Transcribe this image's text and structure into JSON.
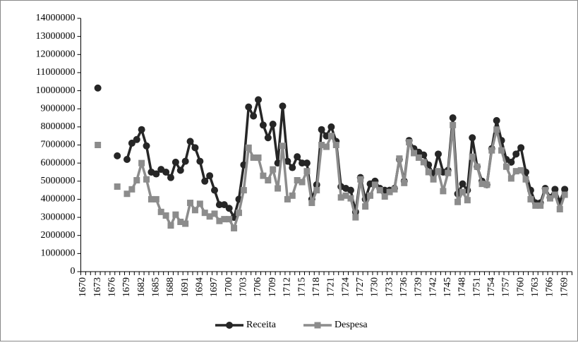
{
  "chart_data": {
    "type": "line",
    "categories": [
      "1670",
      null,
      null,
      "1673",
      null,
      null,
      "1676",
      null,
      null,
      "1679",
      null,
      null,
      "1682",
      null,
      null,
      "1685",
      null,
      null,
      "1688",
      null,
      null,
      "1691",
      null,
      null,
      "1694",
      null,
      null,
      "1697",
      null,
      null,
      "1700",
      null,
      null,
      "1703",
      null,
      null,
      "1706",
      null,
      null,
      "1709",
      null,
      null,
      "1712",
      null,
      null,
      "1715",
      null,
      null,
      "1718",
      null,
      null,
      "1721",
      null,
      null,
      "1724",
      null,
      null,
      "1727",
      null,
      null,
      "1730",
      null,
      null,
      "1733",
      null,
      null,
      "1736",
      null,
      null,
      "1739",
      null,
      null,
      "1742",
      null,
      null,
      "1745",
      null,
      null,
      "1748",
      null,
      null,
      "1751",
      null,
      null,
      "1754",
      null,
      null,
      "1757",
      null,
      null,
      "1760",
      null,
      null,
      "1763",
      null,
      null,
      "1766",
      null,
      null,
      "1769",
      null
    ],
    "series": [
      {
        "name": "Receita",
        "color": "#262626",
        "marker": "circle",
        "values": [
          null,
          null,
          null,
          10150000,
          null,
          null,
          null,
          6400000,
          null,
          6200000,
          7100000,
          7300000,
          7850000,
          6950000,
          5500000,
          5400000,
          5650000,
          5500000,
          5200000,
          6050000,
          5600000,
          6100000,
          7200000,
          6850000,
          6100000,
          5000000,
          5300000,
          4500000,
          3700000,
          3700000,
          3500000,
          3000000,
          4000000,
          5900000,
          9100000,
          8600000,
          9500000,
          8100000,
          7400000,
          8150000,
          6000000,
          9150000,
          6100000,
          5750000,
          6350000,
          6000000,
          6000000,
          4000000,
          4800000,
          7850000,
          7500000,
          8000000,
          7200000,
          4700000,
          4600000,
          4500000,
          3300000,
          5200000,
          4000000,
          4850000,
          5000000,
          4600000,
          4500000,
          4500000,
          4600000,
          6200000,
          5000000,
          7250000,
          6800000,
          6600000,
          6450000,
          5900000,
          5400000,
          6500000,
          5500000,
          5600000,
          8500000,
          4300000,
          4850000,
          4500000,
          7400000,
          5800000,
          5000000,
          4800000,
          6800000,
          8350000,
          7250000,
          6200000,
          6050000,
          6500000,
          6850000,
          5500000,
          4500000,
          3800000,
          3800000,
          4600000,
          4100000,
          4550000,
          3850000,
          4550000,
          null
        ]
      },
      {
        "name": "Despesa",
        "color": "#8c8c8c",
        "marker": "square",
        "values": [
          null,
          null,
          null,
          7000000,
          null,
          null,
          null,
          4700000,
          null,
          4300000,
          4550000,
          5050000,
          6000000,
          5100000,
          4000000,
          4000000,
          3300000,
          3100000,
          2550000,
          3150000,
          2750000,
          2650000,
          3800000,
          3400000,
          3750000,
          3250000,
          3050000,
          3200000,
          2800000,
          2900000,
          2900000,
          2400000,
          3250000,
          4500000,
          6850000,
          6300000,
          6300000,
          5300000,
          5050000,
          5650000,
          4600000,
          6950000,
          4000000,
          4200000,
          5050000,
          4950000,
          5550000,
          3800000,
          4500000,
          7000000,
          6900000,
          7500000,
          7000000,
          4100000,
          4200000,
          4050000,
          3000000,
          5100000,
          3600000,
          4200000,
          4800000,
          4500000,
          4150000,
          4400000,
          4550000,
          6250000,
          4900000,
          7150000,
          6550000,
          6300000,
          6050000,
          5500000,
          5100000,
          5550000,
          4450000,
          5450000,
          8100000,
          3850000,
          4400000,
          3950000,
          6350000,
          5800000,
          4850000,
          4800000,
          6700000,
          7850000,
          6700000,
          5800000,
          5150000,
          5550000,
          5600000,
          5100000,
          4000000,
          3650000,
          3650000,
          4500000,
          4050000,
          4250000,
          3450000,
          4250000,
          null
        ]
      }
    ],
    "ylim": [
      0,
      14000000
    ],
    "yticks": [
      0,
      1000000,
      2000000,
      3000000,
      4000000,
      5000000,
      6000000,
      7000000,
      8000000,
      9000000,
      10000000,
      11000000,
      12000000,
      13000000,
      14000000
    ],
    "grid": false,
    "legend": "bottom"
  }
}
